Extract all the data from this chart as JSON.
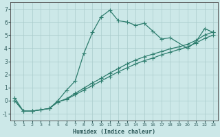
{
  "xlabel": "Humidex (Indice chaleur)",
  "x": [
    0,
    1,
    2,
    3,
    4,
    5,
    6,
    7,
    8,
    9,
    10,
    11,
    12,
    13,
    14,
    15,
    16,
    17,
    18,
    19,
    20,
    21,
    22,
    23
  ],
  "line1": [
    0.2,
    -0.8,
    -0.8,
    -0.7,
    -0.6,
    0.0,
    0.8,
    1.5,
    3.6,
    5.2,
    6.4,
    6.9,
    6.1,
    6.0,
    5.75,
    5.9,
    5.3,
    4.7,
    4.8,
    null,
    4.0,
    4.5,
    5.5,
    5.2
  ],
  "line2": [
    0.0,
    -0.8,
    -0.8,
    -0.7,
    -0.6,
    -0.1,
    0.15,
    0.55,
    0.95,
    1.35,
    1.7,
    2.1,
    2.45,
    2.8,
    3.1,
    3.35,
    3.55,
    3.75,
    3.95,
    4.1,
    4.3,
    4.6,
    5.0,
    5.25
  ],
  "line3": [
    0.0,
    -0.8,
    -0.8,
    -0.7,
    -0.6,
    -0.1,
    0.1,
    0.45,
    0.8,
    1.15,
    1.5,
    1.85,
    2.2,
    2.5,
    2.8,
    3.05,
    3.25,
    3.5,
    3.7,
    3.9,
    4.1,
    4.4,
    4.75,
    5.0
  ],
  "color": "#2e7d6e",
  "bg_color": "#cce8e8",
  "grid_color": "#aacccc",
  "ylim": [
    -1.5,
    7.5
  ],
  "xlim": [
    -0.5,
    23.5
  ],
  "yticks": [
    -1,
    0,
    1,
    2,
    3,
    4,
    5,
    6,
    7
  ],
  "xticks": [
    0,
    1,
    2,
    3,
    4,
    5,
    6,
    7,
    8,
    9,
    10,
    11,
    12,
    13,
    14,
    15,
    16,
    17,
    18,
    19,
    20,
    21,
    22,
    23
  ],
  "markersize": 4,
  "linewidth": 0.9
}
